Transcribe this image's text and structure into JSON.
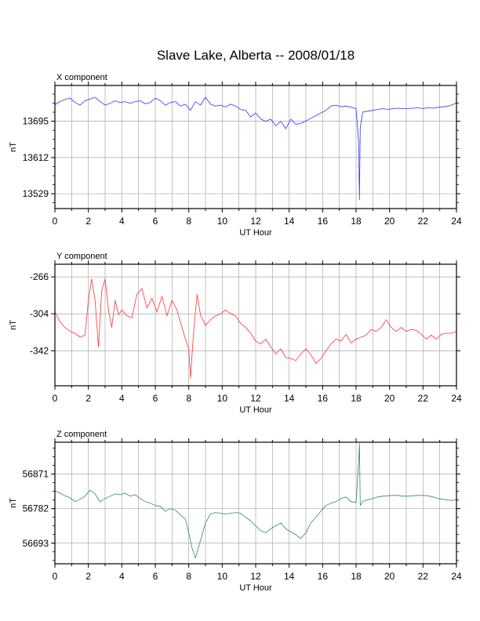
{
  "chart_data": {
    "type": "line",
    "title": "Slave Lake, Alberta -- 2008/01/18",
    "panels": [
      {
        "key": "x",
        "title": "X component",
        "xlabel": "UT Hour",
        "ylabel": "nT",
        "color": "#3333ff",
        "xlim": [
          0,
          24
        ],
        "xticks": [
          0,
          2,
          4,
          6,
          8,
          10,
          12,
          14,
          16,
          18,
          20,
          22,
          24
        ],
        "ylim": [
          13495,
          13777
        ],
        "yticks": [
          13529,
          13612,
          13695
        ],
        "grid": true,
        "series": [
          {
            "x": [
              0,
              0.3,
              0.6,
              0.9,
              1.2,
              1.5,
              1.8,
              2.1,
              2.4,
              2.7,
              3.0,
              3.3,
              3.6,
              3.9,
              4.2,
              4.5,
              4.8,
              5.1,
              5.4,
              5.7,
              6.0,
              6.3,
              6.6,
              6.9,
              7.2,
              7.5,
              7.8,
              8.1,
              8.4,
              8.7,
              9.0,
              9.3,
              9.6,
              9.9,
              10.2,
              10.5,
              10.8,
              11.1,
              11.4,
              11.7,
              12.0,
              12.3,
              12.6,
              12.9,
              13.2,
              13.5,
              13.8,
              14.1,
              14.4,
              14.7,
              15.0,
              15.3,
              15.6,
              15.9,
              16.2,
              16.5,
              16.8,
              17.1,
              17.4,
              17.7,
              18.0,
              18.15,
              18.2,
              18.25,
              18.4,
              18.7,
              19.0,
              19.3,
              19.6,
              19.9,
              20.2,
              20.5,
              20.8,
              21.1,
              21.4,
              21.7,
              22.0,
              22.3,
              22.6,
              22.9,
              23.2,
              23.5,
              23.8,
              24.0
            ],
            "y": [
              13733,
              13740,
              13745,
              13748,
              13738,
              13732,
              13742,
              13746,
              13750,
              13740,
              13732,
              13736,
              13742,
              13738,
              13740,
              13736,
              13740,
              13742,
              13735,
              13738,
              13748,
              13742,
              13732,
              13738,
              13740,
              13730,
              13734,
              13720,
              13740,
              13732,
              13750,
              13734,
              13730,
              13732,
              13728,
              13734,
              13730,
              13722,
              13720,
              13705,
              13714,
              13700,
              13695,
              13700,
              13685,
              13695,
              13678,
              13700,
              13688,
              13690,
              13696,
              13702,
              13708,
              13714,
              13720,
              13730,
              13732,
              13728,
              13730,
              13727,
              13724,
              13650,
              13515,
              13680,
              13716,
              13718,
              13720,
              13722,
              13724,
              13722,
              13724,
              13725,
              13724,
              13724,
              13725,
              13726,
              13724,
              13726,
              13725,
              13727,
              13728,
              13730,
              13733,
              13738
            ]
          }
        ]
      },
      {
        "key": "y",
        "title": "Y component",
        "xlabel": "UT Hour",
        "ylabel": "nT",
        "color": "#ff3333",
        "xlim": [
          0,
          24
        ],
        "xticks": [
          0,
          2,
          4,
          6,
          8,
          10,
          12,
          14,
          16,
          18,
          20,
          22,
          24
        ],
        "ylim": [
          -378,
          -253
        ],
        "yticks": [
          -266,
          -304,
          -342
        ],
        "grid": true,
        "series": [
          {
            "x": [
              0,
              0.3,
              0.6,
              0.9,
              1.2,
              1.5,
              1.8,
              2.0,
              2.2,
              2.4,
              2.6,
              2.8,
              3.0,
              3.2,
              3.4,
              3.6,
              3.8,
              4.0,
              4.3,
              4.6,
              4.9,
              5.2,
              5.5,
              5.8,
              6.1,
              6.4,
              6.7,
              7.0,
              7.3,
              7.6,
              7.8,
              8.0,
              8.1,
              8.3,
              8.5,
              8.7,
              9.0,
              9.3,
              9.6,
              9.9,
              10.2,
              10.5,
              10.8,
              11.1,
              11.4,
              11.7,
              12.0,
              12.3,
              12.6,
              12.9,
              13.2,
              13.5,
              13.8,
              14.1,
              14.4,
              14.7,
              15.0,
              15.3,
              15.6,
              15.9,
              16.2,
              16.5,
              16.8,
              17.1,
              17.4,
              17.7,
              18.0,
              18.3,
              18.6,
              18.9,
              19.2,
              19.5,
              19.8,
              20.1,
              20.4,
              20.7,
              21.0,
              21.3,
              21.6,
              21.9,
              22.2,
              22.5,
              22.8,
              23.1,
              23.4,
              23.7,
              24.0
            ],
            "y": [
              -302,
              -312,
              -318,
              -322,
              -324,
              -328,
              -326,
              -290,
              -268,
              -290,
              -338,
              -280,
              -268,
              -300,
              -318,
              -290,
              -305,
              -300,
              -306,
              -308,
              -284,
              -278,
              -298,
              -288,
              -302,
              -286,
              -306,
              -290,
              -300,
              -318,
              -330,
              -340,
              -370,
              -320,
              -284,
              -305,
              -316,
              -310,
              -306,
              -304,
              -300,
              -304,
              -306,
              -314,
              -318,
              -324,
              -332,
              -335,
              -330,
              -338,
              -345,
              -340,
              -349,
              -350,
              -352,
              -345,
              -340,
              -346,
              -355,
              -350,
              -342,
              -335,
              -330,
              -332,
              -325,
              -334,
              -330,
              -328,
              -326,
              -320,
              -322,
              -318,
              -310,
              -318,
              -322,
              -318,
              -322,
              -320,
              -321,
              -325,
              -330,
              -326,
              -330,
              -325,
              -324,
              -324,
              -322
            ]
          }
        ]
      },
      {
        "key": "z",
        "title": "Z component",
        "xlabel": "UT Hour",
        "ylabel": "nT",
        "color": "#2e8b57",
        "xlim": [
          0,
          24
        ],
        "xticks": [
          0,
          2,
          4,
          6,
          8,
          10,
          12,
          14,
          16,
          18,
          20,
          22,
          24
        ],
        "ylim": [
          56640,
          56953
        ],
        "yticks": [
          56693,
          56782,
          56871
        ],
        "grid": true,
        "series": [
          {
            "x": [
              0,
              0.3,
              0.6,
              0.9,
              1.2,
              1.5,
              1.8,
              2.1,
              2.4,
              2.7,
              3.0,
              3.3,
              3.6,
              3.9,
              4.2,
              4.5,
              4.8,
              5.1,
              5.4,
              5.7,
              6.0,
              6.3,
              6.6,
              6.9,
              7.2,
              7.5,
              7.8,
              8.0,
              8.2,
              8.4,
              8.7,
              9.0,
              9.3,
              9.6,
              9.9,
              10.2,
              10.5,
              10.8,
              11.1,
              11.4,
              11.7,
              12.0,
              12.3,
              12.6,
              12.9,
              13.2,
              13.5,
              13.8,
              14.1,
              14.4,
              14.7,
              15.0,
              15.3,
              15.6,
              15.9,
              16.2,
              16.5,
              16.8,
              17.1,
              17.4,
              17.7,
              18.0,
              18.15,
              18.2,
              18.25,
              18.4,
              18.7,
              19.0,
              19.3,
              19.6,
              19.9,
              20.2,
              20.5,
              20.8,
              21.1,
              21.4,
              21.7,
              22.0,
              22.3,
              22.6,
              22.9,
              23.2,
              23.5,
              23.8,
              24.0
            ],
            "y": [
              56828,
              56822,
              56815,
              56810,
              56800,
              56806,
              56814,
              56830,
              56820,
              56800,
              56808,
              56814,
              56820,
              56818,
              56822,
              56814,
              56818,
              56808,
              56800,
              56796,
              56790,
              56788,
              56775,
              56782,
              56778,
              56766,
              56755,
              56720,
              56680,
              56655,
              56700,
              56745,
              56768,
              56772,
              56770,
              56768,
              56770,
              56772,
              56770,
              56760,
              56750,
              56738,
              56725,
              56720,
              56730,
              56738,
              56745,
              56730,
              56722,
              56715,
              56705,
              56720,
              56745,
              56760,
              56776,
              56790,
              56796,
              56800,
              56808,
              56812,
              56800,
              56798,
              56900,
              56950,
              56790,
              56800,
              56805,
              56808,
              56812,
              56814,
              56815,
              56816,
              56816,
              56814,
              56814,
              56815,
              56816,
              56816,
              56815,
              56812,
              56808,
              56806,
              56804,
              56803,
              56806
            ]
          }
        ]
      }
    ]
  }
}
